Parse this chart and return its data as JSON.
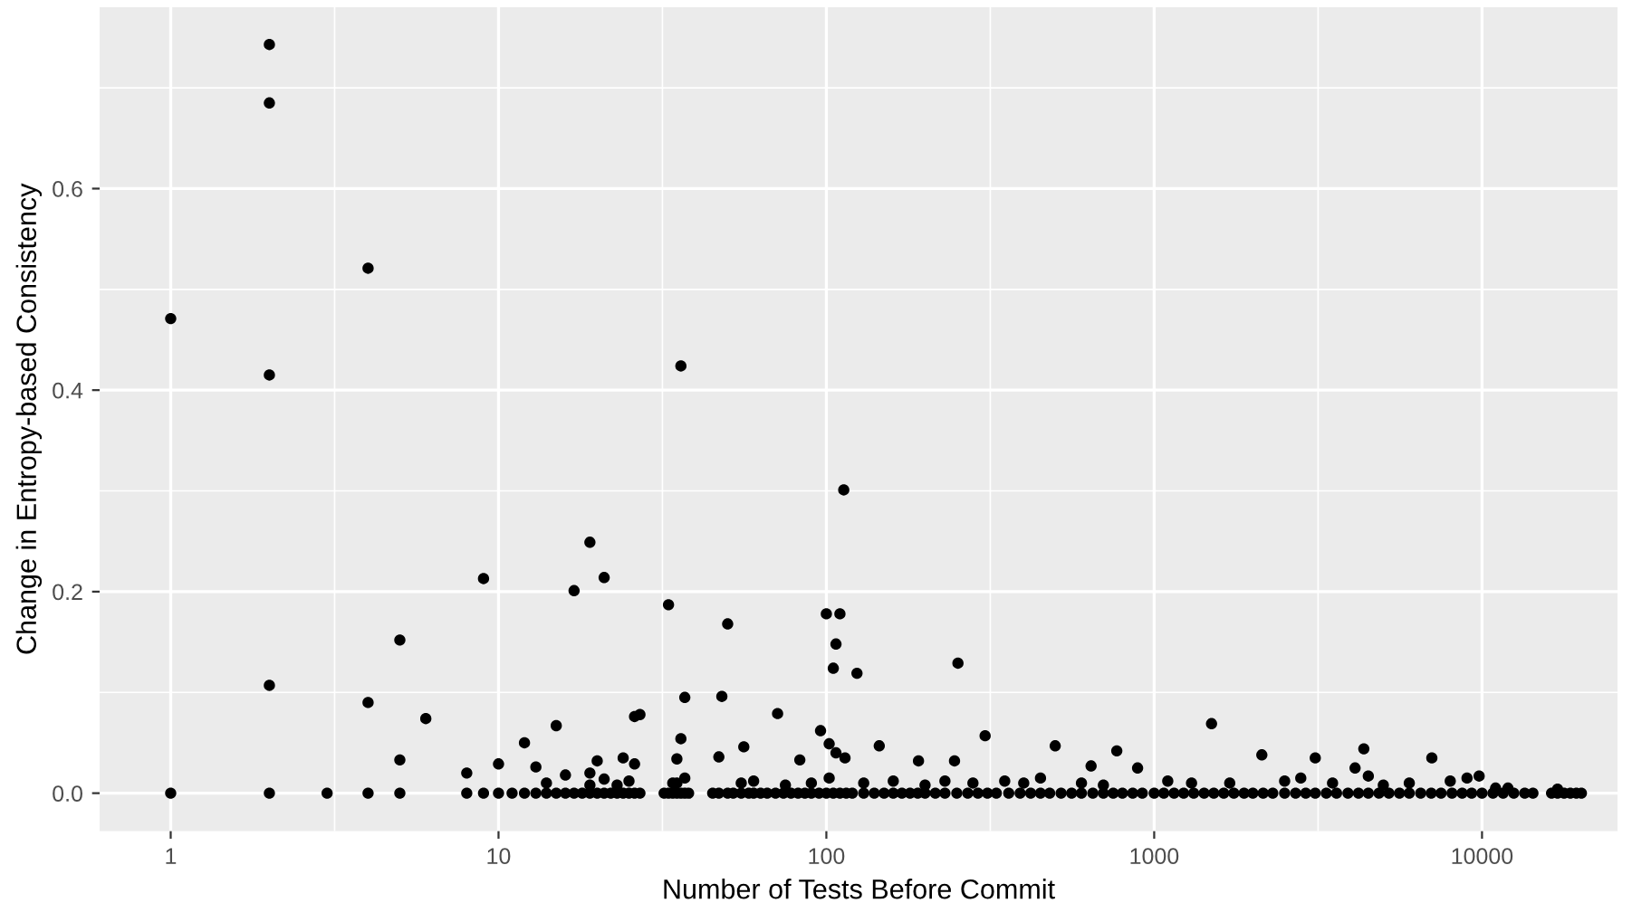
{
  "chart_data": {
    "type": "scatter",
    "xlabel": "Number of Tests Before Commit",
    "ylabel": "Change in Entropy-based Consistency",
    "log": "x",
    "xlim": [
      0.607,
      25900
    ],
    "ylim": [
      -0.0377,
      0.78
    ],
    "xticks": [
      1,
      10,
      100,
      1000,
      10000
    ],
    "yticks": [
      {
        "value": 0,
        "label": "0.0"
      },
      {
        "value": 0.2,
        "label": "0.2"
      },
      {
        "value": 0.4,
        "label": "0.4"
      },
      {
        "value": 0.6,
        "label": "0.6"
      }
    ],
    "grid": true,
    "marker": "circle",
    "series": [
      {
        "color": "#000000",
        "x": [
          1,
          2,
          2,
          2,
          4,
          36,
          2,
          4,
          5,
          5,
          6,
          8,
          9,
          10,
          12,
          13,
          15,
          16,
          17,
          19,
          19,
          20,
          21,
          21,
          24,
          26,
          26,
          27,
          33,
          35,
          36,
          37,
          37,
          47,
          48,
          50,
          56,
          71,
          83,
          96,
          113,
          100,
          110,
          107,
          105,
          124,
          252,
          102,
          107,
          114,
          145,
          191,
          246,
          305,
          499,
          642,
          769,
          890,
          1496,
          2130,
          3100,
          4360,
          4100,
          4500,
          7030,
          9800,
          1,
          2,
          3,
          4,
          5,
          8,
          9,
          10,
          11,
          12,
          13,
          14,
          15,
          16,
          17,
          18,
          19,
          20,
          21,
          22,
          23,
          24,
          25,
          26,
          27,
          32,
          33,
          34,
          35,
          36,
          37,
          38,
          45,
          47,
          50,
          52,
          55,
          58,
          60,
          63,
          66,
          70,
          74,
          78,
          82,
          86,
          90,
          95,
          100,
          105,
          110,
          115,
          120,
          130,
          140,
          150,
          160,
          170,
          180,
          190,
          200,
          215,
          230,
          250,
          270,
          290,
          310,
          330,
          360,
          390,
          420,
          450,
          480,
          520,
          560,
          600,
          650,
          700,
          750,
          800,
          860,
          920,
          1000,
          1070,
          1150,
          1230,
          1320,
          1420,
          1520,
          1630,
          1750,
          1880,
          2000,
          2150,
          2300,
          2500,
          2700,
          2900,
          3100,
          3350,
          3600,
          3900,
          4200,
          4500,
          4850,
          5200,
          5600,
          6000,
          6500,
          7000,
          7500,
          8100,
          8700,
          9300,
          10000,
          10800,
          11600,
          12500,
          13500,
          14300,
          16300,
          17000,
          17800,
          18600,
          19400,
          20100,
          14,
          19,
          23,
          25,
          34,
          35,
          55,
          60,
          75,
          90,
          102,
          130,
          160,
          200,
          230,
          280,
          350,
          400,
          450,
          600,
          700,
          1100,
          1300,
          1700,
          2500,
          2800,
          3500,
          5000,
          6000,
          8000,
          9000,
          11000,
          12000,
          17000
        ],
        "values": [
          0.471,
          0.743,
          0.685,
          0.415,
          0.521,
          0.424,
          0.107,
          0.09,
          0.152,
          0.033,
          0.074,
          0.02,
          0.213,
          0.029,
          0.05,
          0.026,
          0.067,
          0.018,
          0.201,
          0.249,
          0.02,
          0.032,
          0.214,
          0.014,
          0.035,
          0.029,
          0.076,
          0.078,
          0.187,
          0.034,
          0.054,
          0.095,
          0.015,
          0.036,
          0.096,
          0.168,
          0.046,
          0.079,
          0.033,
          0.062,
          0.301,
          0.178,
          0.178,
          0.148,
          0.124,
          0.119,
          0.129,
          0.049,
          0.04,
          0.035,
          0.047,
          0.032,
          0.032,
          0.057,
          0.047,
          0.027,
          0.042,
          0.025,
          0.069,
          0.038,
          0.035,
          0.044,
          0.025,
          0.017,
          0.035,
          0.017,
          0,
          0,
          0,
          0,
          0,
          0,
          0,
          0,
          0,
          0,
          0,
          0,
          0,
          0,
          0,
          0,
          0,
          0,
          0,
          0,
          0,
          0,
          0,
          0,
          0,
          0,
          0,
          0,
          0,
          0,
          0,
          0,
          0,
          0,
          0,
          0,
          0,
          0,
          0,
          0,
          0,
          0,
          0,
          0,
          0,
          0,
          0,
          0,
          0,
          0,
          0,
          0,
          0,
          0,
          0,
          0,
          0,
          0,
          0,
          0,
          0,
          0,
          0,
          0,
          0,
          0,
          0,
          0,
          0,
          0,
          0,
          0,
          0,
          0,
          0,
          0,
          0,
          0,
          0,
          0,
          0,
          0,
          0,
          0,
          0,
          0,
          0,
          0,
          0,
          0,
          0,
          0,
          0,
          0,
          0,
          0,
          0,
          0,
          0,
          0,
          0,
          0,
          0,
          0,
          0,
          0,
          0,
          0,
          0,
          0,
          0,
          0,
          0,
          0,
          0,
          0,
          0,
          0,
          0,
          0,
          0,
          0,
          0,
          0,
          0,
          0,
          0.01,
          0.008,
          0.008,
          0.012,
          0.01,
          0.01,
          0.01,
          0.012,
          0.008,
          0.01,
          0.015,
          0.01,
          0.012,
          0.008,
          0.012,
          0.01,
          0.012,
          0.01,
          0.015,
          0.01,
          0.008,
          0.012,
          0.01,
          0.01,
          0.012,
          0.015,
          0.01,
          0.008,
          0.01,
          0.012,
          0.015,
          0.005,
          0.005,
          0.004
        ]
      }
    ]
  }
}
